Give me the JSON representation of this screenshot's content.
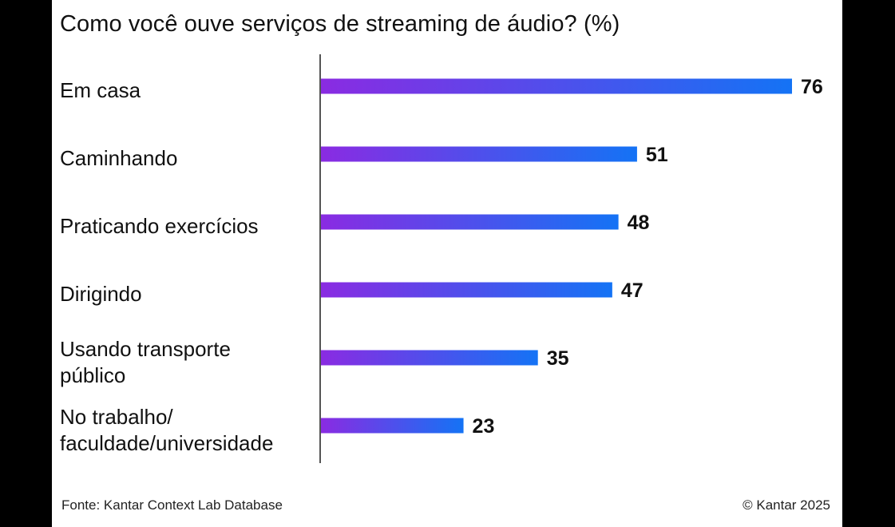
{
  "chart_data": {
    "type": "bar",
    "orientation": "horizontal",
    "title": "Como você ouve serviços de streaming de áudio? (%)",
    "categories": [
      [
        "Em casa"
      ],
      [
        "Caminhando"
      ],
      [
        "Praticando exercícios"
      ],
      [
        "Dirigindo"
      ],
      [
        "Usando transporte",
        "público"
      ],
      [
        "No trabalho/",
        "faculdade/universidade"
      ]
    ],
    "values": [
      76,
      51,
      48,
      47,
      35,
      23
    ],
    "value_labels": [
      "76",
      "51",
      "48",
      "47",
      "35",
      "23"
    ],
    "xlim": [
      0,
      76
    ],
    "grid": false,
    "colors": {
      "bar_start": "#8A2BE2",
      "bar_end": "#1473F5",
      "axis": "#555555",
      "text": "#111111"
    }
  },
  "footer": {
    "source": "Fonte: Kantar Context Lab Database",
    "copyright": "© Kantar 2025"
  }
}
